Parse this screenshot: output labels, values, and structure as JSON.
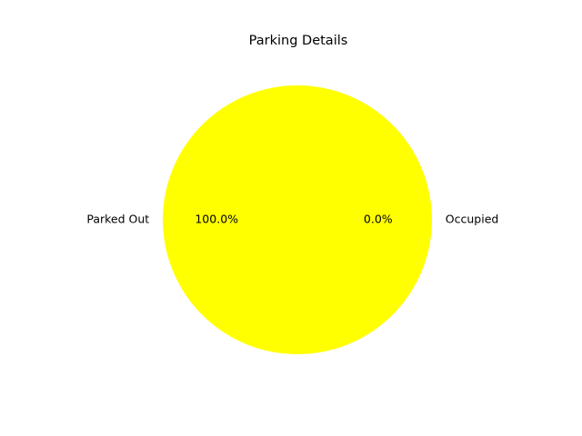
{
  "chart_data": {
    "type": "pie",
    "title": "Parking Details",
    "labels": [
      "Occupied",
      "Parked Out"
    ],
    "values": [
      0,
      1
    ],
    "percent_labels": [
      "0.0%",
      "100.0%"
    ],
    "colors": [
      "#ff0000",
      "#ffff00"
    ],
    "start_angle_deg": 0,
    "direction": "counterclockwise"
  }
}
